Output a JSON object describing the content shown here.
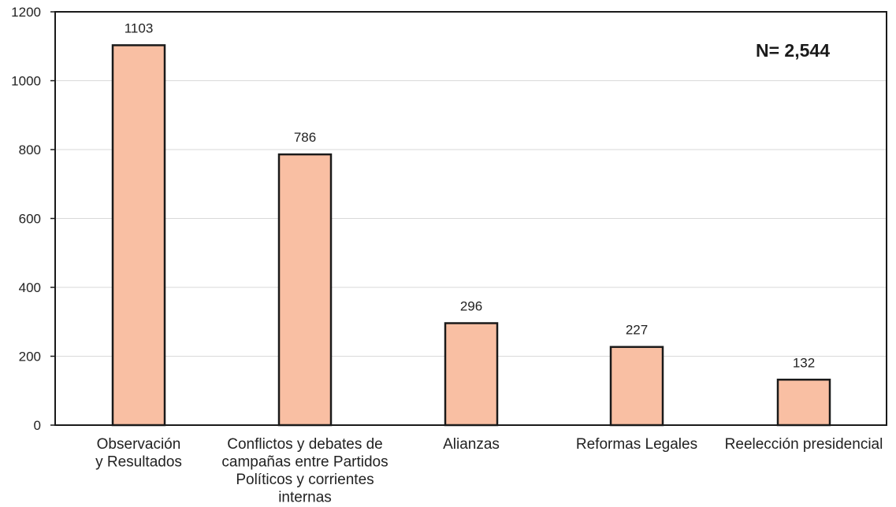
{
  "chart_data": {
    "type": "bar",
    "categories": [
      [
        "Observación",
        "y Resultados"
      ],
      [
        "Conflictos y debates de",
        "campañas entre Partidos",
        "Políticos y corrientes",
        "internas"
      ],
      [
        "Alianzas"
      ],
      [
        "Reformas Legales"
      ],
      [
        "Reelección presidencial"
      ]
    ],
    "values": [
      1103,
      786,
      296,
      227,
      132
    ],
    "data_labels": [
      "1103",
      "786",
      "296",
      "227",
      "132"
    ],
    "ylim": [
      0,
      1200
    ],
    "yticks": [
      0,
      200,
      400,
      600,
      800,
      1000,
      1200
    ],
    "grid": true,
    "annotation": "N= 2,544",
    "bar_color": "#f9bfa3",
    "bar_edge_color": "#1a1a1a",
    "title": "",
    "xlabel": "",
    "ylabel": ""
  }
}
